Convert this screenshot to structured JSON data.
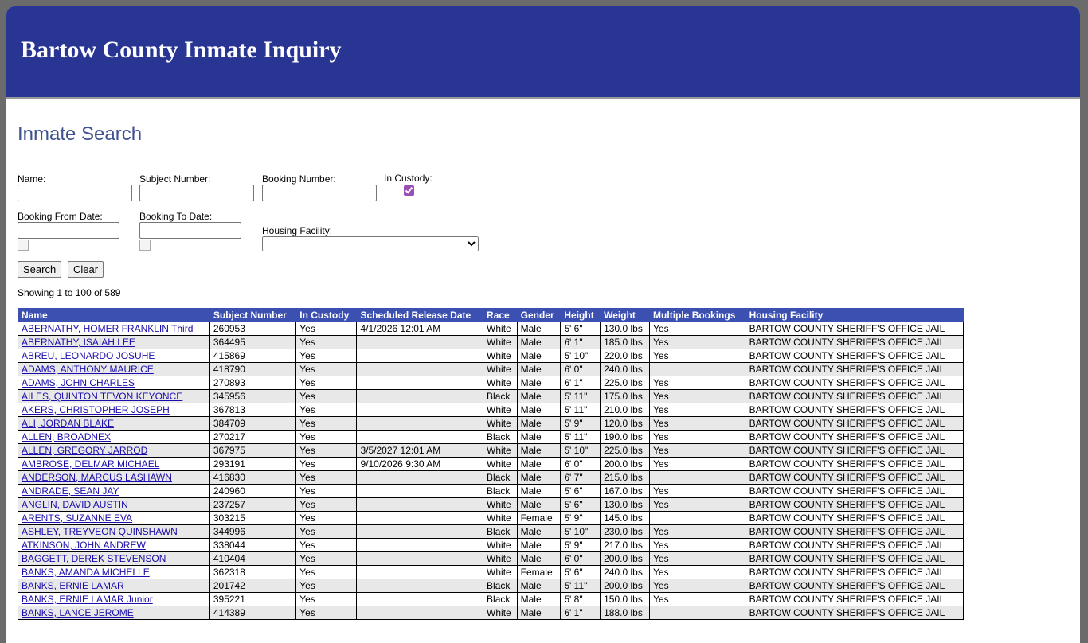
{
  "header": {
    "title": "Bartow County Inmate Inquiry"
  },
  "search": {
    "title": "Inmate Search",
    "fields": {
      "name": "Name:",
      "subject_number": "Subject Number:",
      "booking_number": "Booking Number:",
      "in_custody": "In Custody:",
      "booking_from": "Booking From Date:",
      "booking_to": "Booking To Date:",
      "housing_facility": "Housing Facility:"
    },
    "buttons": {
      "search": "Search",
      "clear": "Clear"
    }
  },
  "status": "Showing 1 to 100 of 589",
  "table": {
    "columns": [
      "Name",
      "Subject Number",
      "In Custody",
      "Scheduled Release Date",
      "Race",
      "Gender",
      "Height",
      "Weight",
      "Multiple Bookings",
      "Housing Facility"
    ],
    "rows": [
      [
        "ABERNATHY, HOMER FRANKLIN Third",
        "260953",
        "Yes",
        "4/1/2026 12:01 AM",
        "White",
        "Male",
        "5' 6\"",
        "130.0 lbs",
        "Yes",
        "BARTOW COUNTY SHERIFF'S OFFICE JAIL"
      ],
      [
        "ABERNATHY, ISAIAH LEE",
        "364495",
        "Yes",
        null,
        "White",
        "Male",
        "6' 1\"",
        "185.0 lbs",
        "Yes",
        "BARTOW COUNTY SHERIFF'S OFFICE JAIL"
      ],
      [
        "ABREU, LEONARDO JOSUHE",
        "415869",
        "Yes",
        null,
        "White",
        "Male",
        "5' 10\"",
        "220.0 lbs",
        "Yes",
        "BARTOW COUNTY SHERIFF'S OFFICE JAIL"
      ],
      [
        "ADAMS, ANTHONY MAURICE",
        "418790",
        "Yes",
        null,
        "White",
        "Male",
        "6' 0\"",
        "240.0 lbs",
        null,
        "BARTOW COUNTY SHERIFF'S OFFICE JAIL"
      ],
      [
        "ADAMS, JOHN CHARLES",
        "270893",
        "Yes",
        null,
        "White",
        "Male",
        "6' 1\"",
        "225.0 lbs",
        "Yes",
        "BARTOW COUNTY SHERIFF'S OFFICE JAIL"
      ],
      [
        "AILES, QUINTON TEVON KEYONCE",
        "345956",
        "Yes",
        null,
        "Black",
        "Male",
        "5' 11\"",
        "175.0 lbs",
        "Yes",
        "BARTOW COUNTY SHERIFF'S OFFICE JAIL"
      ],
      [
        "AKERS, CHRISTOPHER JOSEPH",
        "367813",
        "Yes",
        null,
        "White",
        "Male",
        "5' 11\"",
        "210.0 lbs",
        "Yes",
        "BARTOW COUNTY SHERIFF'S OFFICE JAIL"
      ],
      [
        "ALI, JORDAN BLAKE",
        "384709",
        "Yes",
        null,
        "White",
        "Male",
        "5' 9\"",
        "120.0 lbs",
        "Yes",
        "BARTOW COUNTY SHERIFF'S OFFICE JAIL"
      ],
      [
        "ALLEN, BROADNEX",
        "270217",
        "Yes",
        null,
        "Black",
        "Male",
        "5' 11\"",
        "190.0 lbs",
        "Yes",
        "BARTOW COUNTY SHERIFF'S OFFICE JAIL"
      ],
      [
        "ALLEN, GREGORY JARROD",
        "367975",
        "Yes",
        "3/5/2027 12:01 AM",
        "White",
        "Male",
        "5' 10\"",
        "225.0 lbs",
        "Yes",
        "BARTOW COUNTY SHERIFF'S OFFICE JAIL"
      ],
      [
        "AMBROSE, DELMAR MICHAEL",
        "293191",
        "Yes",
        "9/10/2026 9:30 AM",
        "White",
        "Male",
        "6' 0\"",
        "200.0 lbs",
        "Yes",
        "BARTOW COUNTY SHERIFF'S OFFICE JAIL"
      ],
      [
        "ANDERSON, MARCUS LASHAWN",
        "416830",
        "Yes",
        null,
        "Black",
        "Male",
        "6' 7\"",
        "215.0 lbs",
        null,
        "BARTOW COUNTY SHERIFF'S OFFICE JAIL"
      ],
      [
        "ANDRADE, SEAN JAY",
        "240960",
        "Yes",
        null,
        "Black",
        "Male",
        "5' 6\"",
        "167.0 lbs",
        "Yes",
        "BARTOW COUNTY SHERIFF'S OFFICE JAIL"
      ],
      [
        "ANGLIN, DAVID AUSTIN",
        "237257",
        "Yes",
        null,
        "White",
        "Male",
        "5' 6\"",
        "130.0 lbs",
        "Yes",
        "BARTOW COUNTY SHERIFF'S OFFICE JAIL"
      ],
      [
        "ARENTS, SUZANNE EVA",
        "303215",
        "Yes",
        null,
        "White",
        "Female",
        "5' 9\"",
        "145.0 lbs",
        null,
        "BARTOW COUNTY SHERIFF'S OFFICE JAIL"
      ],
      [
        "ASHLEY, TREYVEON QUINSHAWN",
        "344996",
        "Yes",
        null,
        "Black",
        "Male",
        "5' 10\"",
        "230.0 lbs",
        "Yes",
        "BARTOW COUNTY SHERIFF'S OFFICE JAIL"
      ],
      [
        "ATKINSON, JOHN ANDREW",
        "338044",
        "Yes",
        null,
        "White",
        "Male",
        "5' 9\"",
        "217.0 lbs",
        "Yes",
        "BARTOW COUNTY SHERIFF'S OFFICE JAIL"
      ],
      [
        "BAGGETT, DEREK STEVENSON",
        "410404",
        "Yes",
        null,
        "White",
        "Male",
        "6' 0\"",
        "200.0 lbs",
        "Yes",
        "BARTOW COUNTY SHERIFF'S OFFICE JAIL"
      ],
      [
        "BANKS, AMANDA MICHELLE",
        "362318",
        "Yes",
        null,
        "White",
        "Female",
        "5' 6\"",
        "240.0 lbs",
        "Yes",
        "BARTOW COUNTY SHERIFF'S OFFICE JAIL"
      ],
      [
        "BANKS, ERNIE LAMAR",
        "201742",
        "Yes",
        null,
        "Black",
        "Male",
        "5' 11\"",
        "200.0 lbs",
        "Yes",
        "BARTOW COUNTY SHERIFF'S OFFICE JAIL"
      ],
      [
        "BANKS, ERNIE LAMAR Junior",
        "395221",
        "Yes",
        null,
        "Black",
        "Male",
        "5' 8\"",
        "150.0 lbs",
        "Yes",
        "BARTOW COUNTY SHERIFF'S OFFICE JAIL"
      ],
      [
        "BANKS, LANCE JEROME",
        "414389",
        "Yes",
        null,
        "White",
        "Male",
        "6' 1\"",
        "188.0 lbs",
        null,
        "BARTOW COUNTY SHERIFF'S OFFICE JAIL"
      ]
    ]
  }
}
